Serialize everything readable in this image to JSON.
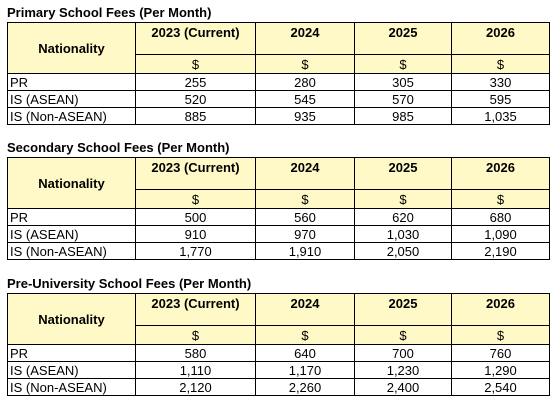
{
  "tables": [
    {
      "title": "Primary School Fees (Per Month)",
      "header": {
        "nationality": "Nationality",
        "years": [
          "2023 (Current)",
          "2024",
          "2025",
          "2026"
        ],
        "units": [
          "$",
          "$",
          "$",
          "$"
        ]
      },
      "rows": [
        [
          "PR",
          "255",
          "280",
          "305",
          "330"
        ],
        [
          "IS (ASEAN)",
          "520",
          "545",
          "570",
          "595"
        ],
        [
          "IS (Non-ASEAN)",
          "885",
          "935",
          "985",
          "1,035"
        ]
      ]
    },
    {
      "title": "Secondary School Fees (Per Month)",
      "header": {
        "nationality": "Nationality",
        "years": [
          "2023 (Current)",
          "2024",
          "2025",
          "2026"
        ],
        "units": [
          "$",
          "$",
          "$",
          "$"
        ]
      },
      "rows": [
        [
          "PR",
          "500",
          "560",
          "620",
          "680"
        ],
        [
          "IS (ASEAN)",
          "910",
          "970",
          "1,030",
          "1,090"
        ],
        [
          "IS (Non-ASEAN)",
          "1,770",
          "1,910",
          "2,050",
          "2,190"
        ]
      ]
    },
    {
      "title": "Pre-University School Fees (Per Month)",
      "header": {
        "nationality": "Nationality",
        "years": [
          "2023 (Current)",
          "2024",
          "2025",
          "2026"
        ],
        "units": [
          "$",
          "$",
          "$",
          "$"
        ]
      },
      "rows": [
        [
          "PR",
          "580",
          "640",
          "700",
          "760"
        ],
        [
          "IS (ASEAN)",
          "1,110",
          "1,170",
          "1,230",
          "1,290"
        ],
        [
          "IS (Non-ASEAN)",
          "2,120",
          "2,260",
          "2,400",
          "2,540"
        ]
      ]
    }
  ]
}
